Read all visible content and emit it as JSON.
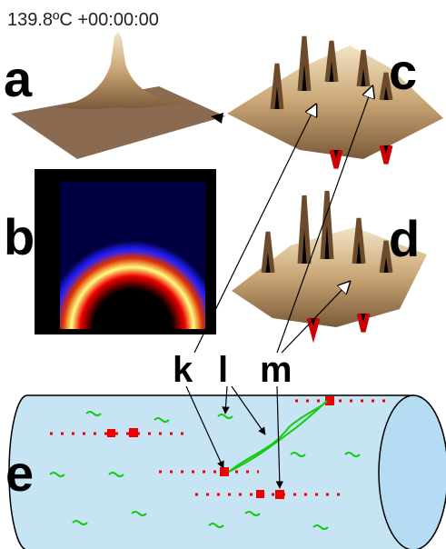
{
  "header": {
    "timestamp": "139.8ºC  +00:00:00"
  },
  "panel_labels": [
    "a",
    "b",
    "c",
    "d",
    "e"
  ],
  "markers": [
    "k",
    "l",
    "m"
  ]
}
